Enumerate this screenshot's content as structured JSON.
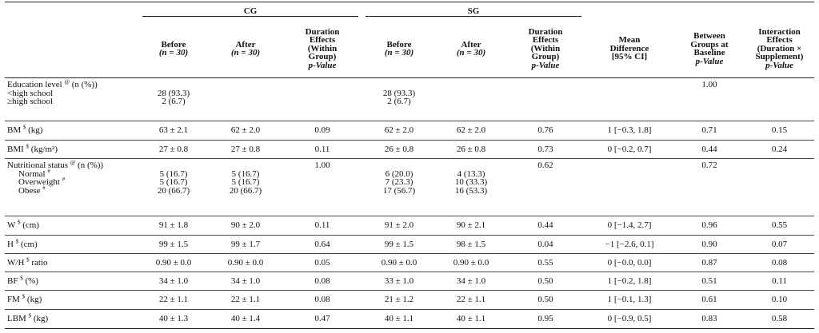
{
  "groups": {
    "cg": "CG",
    "sg": "SG"
  },
  "headers": {
    "before_cg": [
      "Before",
      "(n = 30)"
    ],
    "after_cg": [
      "After",
      "(n = 30)"
    ],
    "duration_cg": [
      "Duration",
      "Effects",
      "(Within",
      "Group)",
      "p-Value"
    ],
    "before_sg": [
      "Before",
      "(n = 30)"
    ],
    "after_sg": [
      "After",
      "(n = 30)"
    ],
    "duration_sg": [
      "Duration",
      "Effects",
      "(Within",
      "Group)",
      "p-Value"
    ],
    "mean_diff": [
      "Mean",
      "Difference",
      "[95% CI]"
    ],
    "between": [
      "Between",
      "Groups at",
      "Baseline",
      "p-Value"
    ],
    "interaction": [
      "Interaction",
      "Effects",
      "(Duration ×",
      "Supplement)",
      "p-Value"
    ]
  },
  "rows": [
    {
      "label": "Education level",
      "sup": "@",
      "unit": " (n (%))",
      "sub": [
        "<high school",
        "≥high school"
      ],
      "before_cg": [
        "",
        "28 (93.3)",
        "2 (6.7)"
      ],
      "after_cg": [
        ""
      ],
      "dur_cg": [
        ""
      ],
      "before_sg": [
        "",
        "28 (93.3)",
        "2 (6.7)"
      ],
      "after_sg": [
        ""
      ],
      "dur_sg": [
        ""
      ],
      "mean_diff": [
        ""
      ],
      "between": [
        "1.00"
      ],
      "interaction": [
        ""
      ]
    },
    {
      "label": "BM",
      "sup": "$",
      "unit": " (kg)",
      "before_cg": [
        "63 ± 2.1"
      ],
      "after_cg": [
        "62 ± 2.0"
      ],
      "dur_cg": [
        "0.09"
      ],
      "before_sg": [
        "62 ± 2.0"
      ],
      "after_sg": [
        "62 ± 2.0"
      ],
      "dur_sg": [
        "0.76"
      ],
      "mean_diff": [
        "1 [−0.3, 1.8]"
      ],
      "between": [
        "0.71"
      ],
      "interaction": [
        "0.15"
      ]
    },
    {
      "label": "BMI",
      "sup": "$",
      "unit": " (kg/m²)",
      "before_cg": [
        "27 ± 0.8"
      ],
      "after_cg": [
        "27 ± 0.8"
      ],
      "dur_cg": [
        "0.11"
      ],
      "before_sg": [
        "26 ± 0.8"
      ],
      "after_sg": [
        "26 ± 0.8"
      ],
      "dur_sg": [
        "0.73"
      ],
      "mean_diff": [
        "0 [−0.2, 0.7]"
      ],
      "between": [
        "0.44"
      ],
      "interaction": [
        "0.24"
      ]
    },
    {
      "label": "Nutritional status",
      "sup": "@",
      "unit": " (n (%))",
      "sub": [
        "Normal",
        "Overweight",
        "Obese"
      ],
      "sub_sup": "#",
      "before_cg": [
        "",
        "5 (16.7)",
        "5 (16.7)",
        "20 (66.7)"
      ],
      "after_cg": [
        "",
        "5 (16.7)",
        "5 (16.7)",
        "20 (66.7)"
      ],
      "dur_cg": [
        "1.00"
      ],
      "before_sg": [
        "",
        "6 (20.0)",
        "7 (23.3)",
        "17 (56.7)"
      ],
      "after_sg": [
        "",
        "4 (13.3)",
        "10 (33.3)",
        "16 (53.3)"
      ],
      "dur_sg": [
        "0.62"
      ],
      "mean_diff": [
        ""
      ],
      "between": [
        "0.72"
      ],
      "interaction": [
        ""
      ]
    },
    {
      "label": "W",
      "sup": "$",
      "unit": " (cm)",
      "before_cg": [
        "91 ± 1.8"
      ],
      "after_cg": [
        "90 ± 2.0"
      ],
      "dur_cg": [
        "0.11"
      ],
      "before_sg": [
        "91 ± 2.0"
      ],
      "after_sg": [
        "90 ± 2.1"
      ],
      "dur_sg": [
        "0.44"
      ],
      "mean_diff": [
        "0 [−1.4, 2.7]"
      ],
      "between": [
        "0.96"
      ],
      "interaction": [
        "0.55"
      ]
    },
    {
      "label": "H",
      "sup": "$",
      "unit": " (cm)",
      "before_cg": [
        "99 ± 1.5"
      ],
      "after_cg": [
        "99 ± 1.7"
      ],
      "dur_cg": [
        "0.64"
      ],
      "before_sg": [
        "99 ± 1.5"
      ],
      "after_sg": [
        "98 ± 1.5"
      ],
      "dur_sg": [
        "0.04"
      ],
      "mean_diff": [
        "−1 [−2.6, 0.1]"
      ],
      "between": [
        "0.90"
      ],
      "interaction": [
        "0.07"
      ]
    },
    {
      "label": "W/H",
      "sup": "$",
      "unit": " ratio",
      "before_cg": [
        "0.90 ± 0.0"
      ],
      "after_cg": [
        "0.90 ± 0.0"
      ],
      "dur_cg": [
        "0.05"
      ],
      "before_sg": [
        "0.90 ± 0.0"
      ],
      "after_sg": [
        "0.90 ± 0.0"
      ],
      "dur_sg": [
        "0.55"
      ],
      "mean_diff": [
        "0 [−0.0, 0.0]"
      ],
      "between": [
        "0.87"
      ],
      "interaction": [
        "0.08"
      ]
    },
    {
      "label": "BF",
      "sup": "$",
      "unit": " (%)",
      "before_cg": [
        "34 ± 1.0"
      ],
      "after_cg": [
        "34 ± 1.0"
      ],
      "dur_cg": [
        "0.08"
      ],
      "before_sg": [
        "33 ± 1.0"
      ],
      "after_sg": [
        "34 ± 1.0"
      ],
      "dur_sg": [
        "0.50"
      ],
      "mean_diff": [
        "1 [−0.2, 1.8]"
      ],
      "between": [
        "0.51"
      ],
      "interaction": [
        "0.11"
      ]
    },
    {
      "label": "FM",
      "sup": "$",
      "unit": " (kg)",
      "before_cg": [
        "22 ± 1.1"
      ],
      "after_cg": [
        "22 ± 1.1"
      ],
      "dur_cg": [
        "0.08"
      ],
      "before_sg": [
        "21 ± 1.2"
      ],
      "after_sg": [
        "22 ± 1.1"
      ],
      "dur_sg": [
        "0.50"
      ],
      "mean_diff": [
        "1 [−0.1, 1.3]"
      ],
      "between": [
        "0.61"
      ],
      "interaction": [
        "0.10"
      ]
    },
    {
      "label": "LBM",
      "sup": "$",
      "unit": " (kg)",
      "before_cg": [
        "40 ± 1.3"
      ],
      "after_cg": [
        "40 ± 1.4"
      ],
      "dur_cg": [
        "0.47"
      ],
      "before_sg": [
        "40 ± 1.1"
      ],
      "after_sg": [
        "40 ± 1.1"
      ],
      "dur_sg": [
        "0.95"
      ],
      "mean_diff": [
        "0 [−0.9, 0.5]"
      ],
      "between": [
        "0.83"
      ],
      "interaction": [
        "0.58"
      ]
    }
  ]
}
